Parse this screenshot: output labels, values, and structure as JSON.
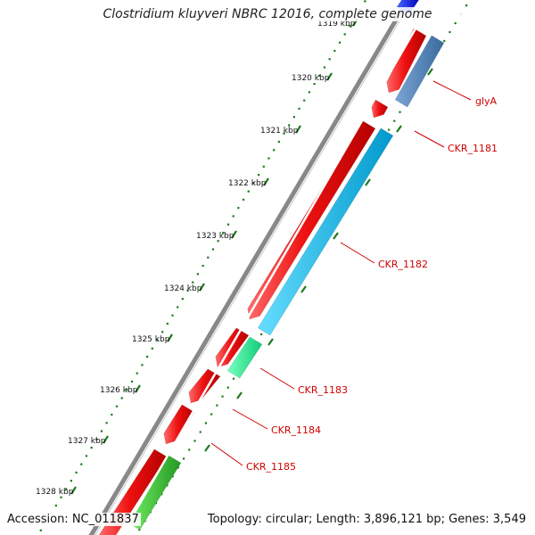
{
  "title": "Clostridium kluyveri NBRC 12016, complete genome",
  "footer": {
    "accession": "Accession: NC_011837",
    "topology": "Topology: circular; Length: 3,896,121 bp; Genes: 3,549"
  },
  "ruler": {
    "labels": [
      "1319 kbp",
      "1320 kbp",
      "1321 kbp",
      "1322 kbp",
      "1323 kbp",
      "1324 kbp",
      "1325 kbp",
      "1326 kbp",
      "1327 kbp",
      "1328 kbp"
    ]
  },
  "gene_labels": [
    "glyA",
    "CKR_1181",
    "CKR_1182",
    "CKR_1183",
    "CKR_1184",
    "CKR_1185"
  ],
  "colors": {
    "cds_red": "#ee1111",
    "gene_steelblue": "#4a7fb5",
    "gene_cyan": "#11bbee",
    "gene_aqua": "#22ee99",
    "gene_green": "#33cc33",
    "gene_blue": "#1a1aee",
    "ticks": "#1e7a1e",
    "backbone": "#888888",
    "label": "#d00000"
  }
}
